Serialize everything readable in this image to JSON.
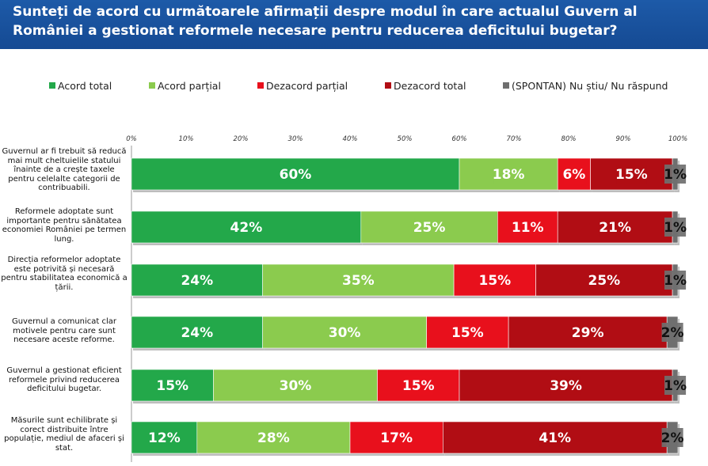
{
  "title": "Sunteți de acord cu următoarele afirmații despre modul în care actualul Guvern al României a gestionat reformele necesare pentru reducerea deficitului bugetar?",
  "legend": [
    {
      "label": "Acord total",
      "color": "#23a84a"
    },
    {
      "label": "Acord parțial",
      "color": "#8bcb4e"
    },
    {
      "label": "Dezacord parțial",
      "color": "#e8101c"
    },
    {
      "label": "Dezacord total",
      "color": "#b10d14"
    },
    {
      "label": "(SPONTAN) Nu știu/ Nu răspund",
      "color": "#6f6f6f"
    }
  ],
  "chart_data": {
    "type": "bar",
    "orientation": "horizontal",
    "stacked": true,
    "xlim": [
      0,
      100
    ],
    "x_ticks": [
      "0%",
      "10%",
      "20%",
      "30%",
      "40%",
      "50%",
      "60%",
      "70%",
      "80%",
      "90%",
      "100%"
    ],
    "categories": [
      "Guvernul ar fi trebuit să reducă mai mult cheltuielile statului înainte de a crește taxele pentru celelalte categorii de contribuabili.",
      "Reformele adoptate sunt importante pentru sănătatea economiei României pe termen lung.",
      "Direcția reformelor adoptate este potrivită și necesară pentru stabilitatea economică a țării.",
      "Guvernul a comunicat clar motivele pentru care sunt necesare aceste reforme.",
      "Guvernul a gestionat eficient reformele privind reducerea deficitului bugetar.",
      "Măsurile sunt echilibrate și corect distribuite între populație, mediul de afaceri și stat."
    ],
    "series": [
      {
        "name": "Acord total",
        "color": "#23a84a",
        "values": [
          60,
          42,
          24,
          24,
          15,
          12
        ]
      },
      {
        "name": "Acord parțial",
        "color": "#8bcb4e",
        "values": [
          18,
          25,
          35,
          30,
          30,
          28
        ]
      },
      {
        "name": "Dezacord parțial",
        "color": "#e8101c",
        "values": [
          6,
          11,
          15,
          15,
          15,
          17
        ]
      },
      {
        "name": "Dezacord total",
        "color": "#b10d14",
        "values": [
          15,
          21,
          25,
          29,
          39,
          41
        ]
      },
      {
        "name": "(SPONTAN) Nu știu/ Nu răspund",
        "color": "#6f6f6f",
        "values": [
          1,
          1,
          1,
          2,
          1,
          2
        ]
      }
    ],
    "data_labels": [
      [
        "60%",
        "18%",
        "6%",
        "15%",
        "1%"
      ],
      [
        "42%",
        "25%",
        "11%",
        "21%",
        "1%"
      ],
      [
        "24%",
        "35%",
        "15%",
        "25%",
        "1%"
      ],
      [
        "24%",
        "30%",
        "15%",
        "29%",
        "2%"
      ],
      [
        "15%",
        "30%",
        "15%",
        "39%",
        "1%"
      ],
      [
        "12%",
        "28%",
        "17%",
        "41%",
        "2%"
      ]
    ]
  }
}
